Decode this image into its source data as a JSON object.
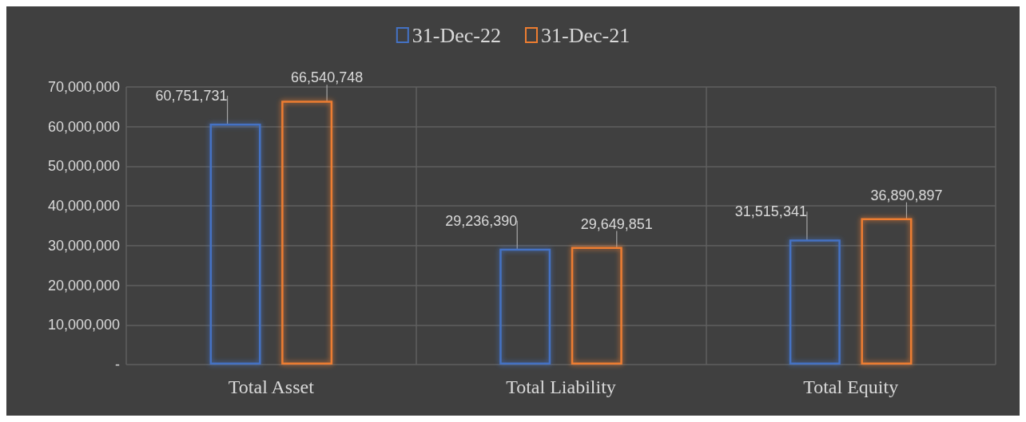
{
  "chart_data": {
    "type": "bar",
    "categories": [
      "Total Asset",
      "Total Liability",
      "Total Equity"
    ],
    "series": [
      {
        "name": "31-Dec-22",
        "color": "#4472c4",
        "values": [
          60751731,
          29236390,
          31515341
        ],
        "value_labels": [
          "60,751,731",
          "29,236,390",
          "31,515,341"
        ]
      },
      {
        "name": "31-Dec-21",
        "color": "#ed7d31",
        "values": [
          66540748,
          29649851,
          36890897
        ],
        "value_labels": [
          "66,540,748",
          "29,649,851",
          "36,890,897"
        ]
      }
    ],
    "ylim": [
      0,
      70000000
    ],
    "yticks": [
      {
        "value": 0,
        "label": "-"
      },
      {
        "value": 10000000,
        "label": "10,000,000"
      },
      {
        "value": 20000000,
        "label": "20,000,000"
      },
      {
        "value": 30000000,
        "label": "30,000,000"
      },
      {
        "value": 40000000,
        "label": "40,000,000"
      },
      {
        "value": 50000000,
        "label": "50,000,000"
      },
      {
        "value": 60000000,
        "label": "60,000,000"
      },
      {
        "value": 70000000,
        "label": "70,000,000"
      }
    ],
    "grid": true,
    "legend": "top"
  }
}
